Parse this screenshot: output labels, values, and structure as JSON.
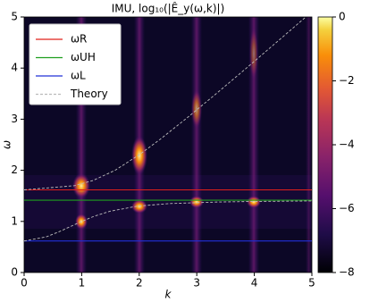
{
  "chart_data": {
    "type": "line",
    "title": "IMU, log₁₀(|Ê_y(ω,k)|)",
    "xlabel": "k",
    "ylabel": "ω",
    "xlim": [
      0,
      5
    ],
    "ylim": [
      0,
      5
    ],
    "xticks": [
      0,
      1,
      2,
      3,
      4,
      5
    ],
    "yticks": [
      0,
      1,
      2,
      3,
      4,
      5
    ],
    "legend": "upper left",
    "series": [
      {
        "name": "ωR",
        "color": "#e0201b",
        "style": "solid",
        "x": [
          0,
          5
        ],
        "values": [
          1.618,
          1.618
        ]
      },
      {
        "name": "ωUH",
        "color": "#1f9e1f",
        "style": "solid",
        "x": [
          0,
          5
        ],
        "values": [
          1.414,
          1.414
        ]
      },
      {
        "name": "ωL",
        "color": "#2030d8",
        "style": "solid",
        "x": [
          0,
          5
        ],
        "values": [
          0.618,
          0.618
        ]
      },
      {
        "name": "Theory",
        "color": "#bbbbbb",
        "style": "dashed",
        "x": [
          0,
          0.875,
          1.197,
          1.581,
          1.996,
          2.356,
          2.803,
          3.339,
          3.864,
          4.381,
          4.895,
          null,
          0,
          0.39,
          0.613,
          0.806,
          1,
          1.215,
          1.492,
          1.979,
          2.541,
          3.371,
          3.957,
          5
        ],
        "values": [
          1.618,
          1.7,
          1.8,
          2.0,
          2.3,
          2.6,
          3.0,
          3.5,
          4.0,
          4.5,
          5.0,
          null,
          0.618,
          0.7,
          0.8,
          0.9,
          1.0,
          1.1,
          1.2,
          1.3,
          1.35,
          1.38,
          1.39,
          1.4
        ]
      }
    ],
    "colorbar": {
      "colormap": "inferno",
      "clim": [
        -8,
        0
      ],
      "ticks": [
        0,
        {
          "value": -2,
          "label": "−2"
        },
        {
          "value": -4,
          "label": "−4"
        },
        {
          "value": -6,
          "label": "−6"
        },
        {
          "value": -8,
          "label": "−8"
        }
      ]
    }
  }
}
